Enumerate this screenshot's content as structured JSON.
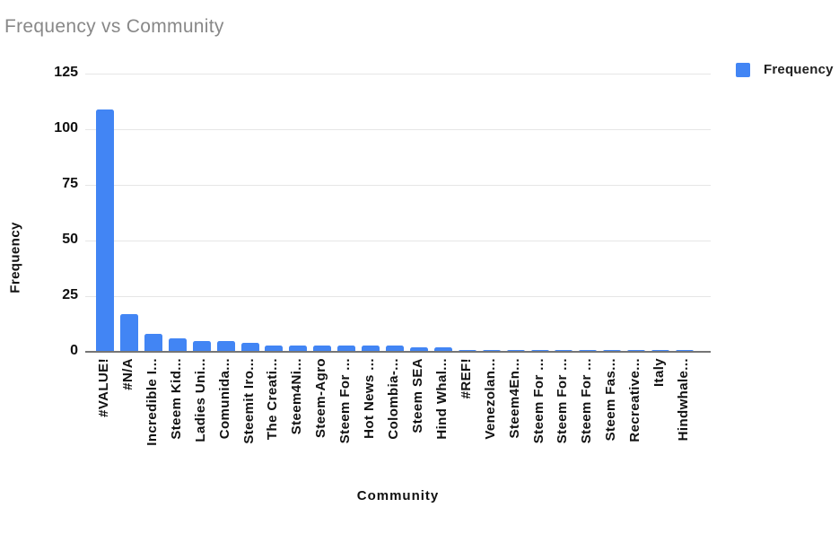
{
  "title": "Frequency vs Community",
  "legend": {
    "label": "Frequency"
  },
  "axes": {
    "x_title": "Community",
    "y_title": "Frequency"
  },
  "colors": {
    "bar": "#4285f4",
    "gridline": "#e6e6e6",
    "axis_line": "#757575",
    "title_text": "#888888",
    "label_text": "#111111",
    "legend_text": "#212121"
  },
  "chart_data": {
    "type": "bar",
    "title": "Frequency vs Community",
    "xlabel": "Community",
    "ylabel": "Frequency",
    "ylim": [
      0,
      125
    ],
    "yticks": [
      0,
      25,
      50,
      75,
      100,
      125
    ],
    "grid": true,
    "legend_position": "top-right",
    "legend": [
      "Frequency"
    ],
    "series_color": "#4285f4",
    "categories": [
      "#VALUE!",
      "#N/A",
      "Incredible I...",
      "Steem Kid...",
      "Ladies Uni...",
      "Comunida...",
      "Steemit Iro...",
      "The Creati...",
      "Steem4Ni...",
      "Steem-Agro",
      "Steem For ...",
      "Hot News ...",
      "Colombia-...",
      "Steem SEA",
      "Hind Whal...",
      "#REF!",
      "Venezolan...",
      "Steem4En...",
      "Steem For ...",
      "Steem For ...",
      "Steem For ...",
      "Steem Fas...",
      "Recreative...",
      "Italy",
      "Hindwhale..."
    ],
    "values": [
      109,
      17,
      8,
      6,
      5,
      5,
      4,
      3,
      3,
      3,
      3,
      3,
      3,
      2,
      2,
      1,
      1,
      1,
      1,
      1,
      1,
      1,
      1,
      1,
      1
    ]
  }
}
